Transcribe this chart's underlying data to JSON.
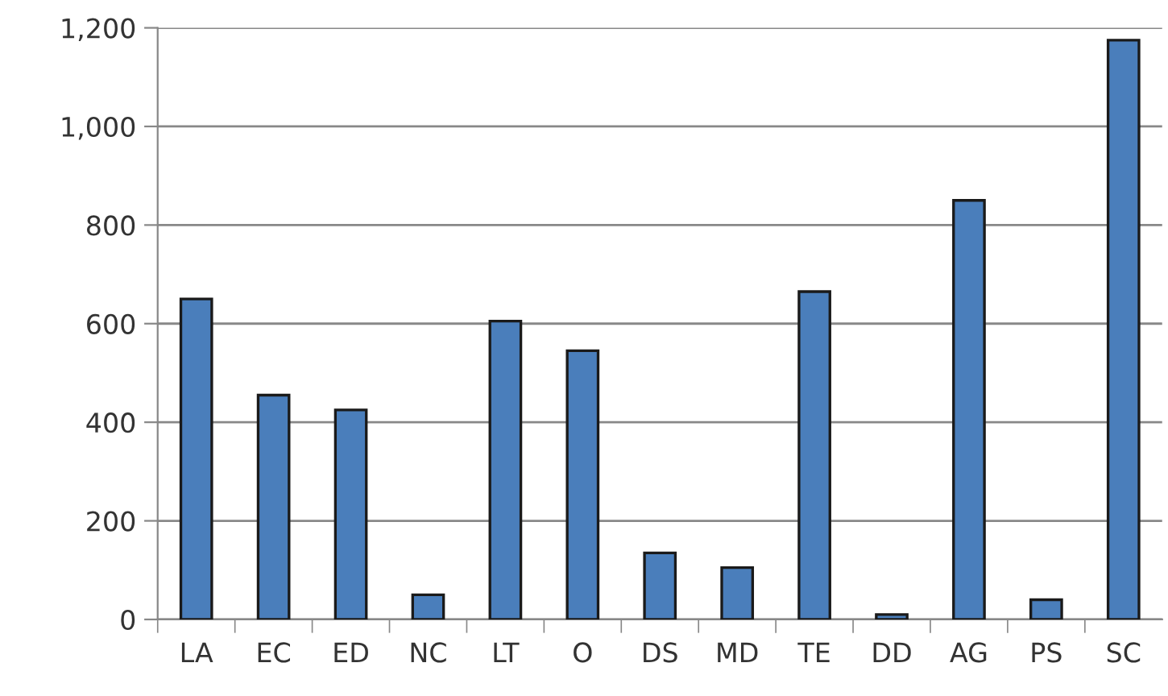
{
  "chart_data": {
    "type": "bar",
    "categories": [
      "LA",
      "EC",
      "ED",
      "NC",
      "LT",
      "O",
      "DS",
      "MD",
      "TE",
      "DD",
      "AG",
      "PS",
      "SC"
    ],
    "values": [
      650,
      455,
      425,
      50,
      605,
      545,
      135,
      105,
      665,
      10,
      850,
      40,
      1175
    ],
    "color": "#4a7ebb",
    "ylim": [
      0,
      1200
    ],
    "yticks": [
      {
        "value": 0,
        "label": "0"
      },
      {
        "value": 200,
        "label": "200"
      },
      {
        "value": 400,
        "label": "400"
      },
      {
        "value": 600,
        "label": "600"
      },
      {
        "value": 800,
        "label": "800"
      },
      {
        "value": 1000,
        "label": "1,000"
      },
      {
        "value": 1200,
        "label": "1,200"
      }
    ],
    "grid": "y",
    "legend": false
  }
}
